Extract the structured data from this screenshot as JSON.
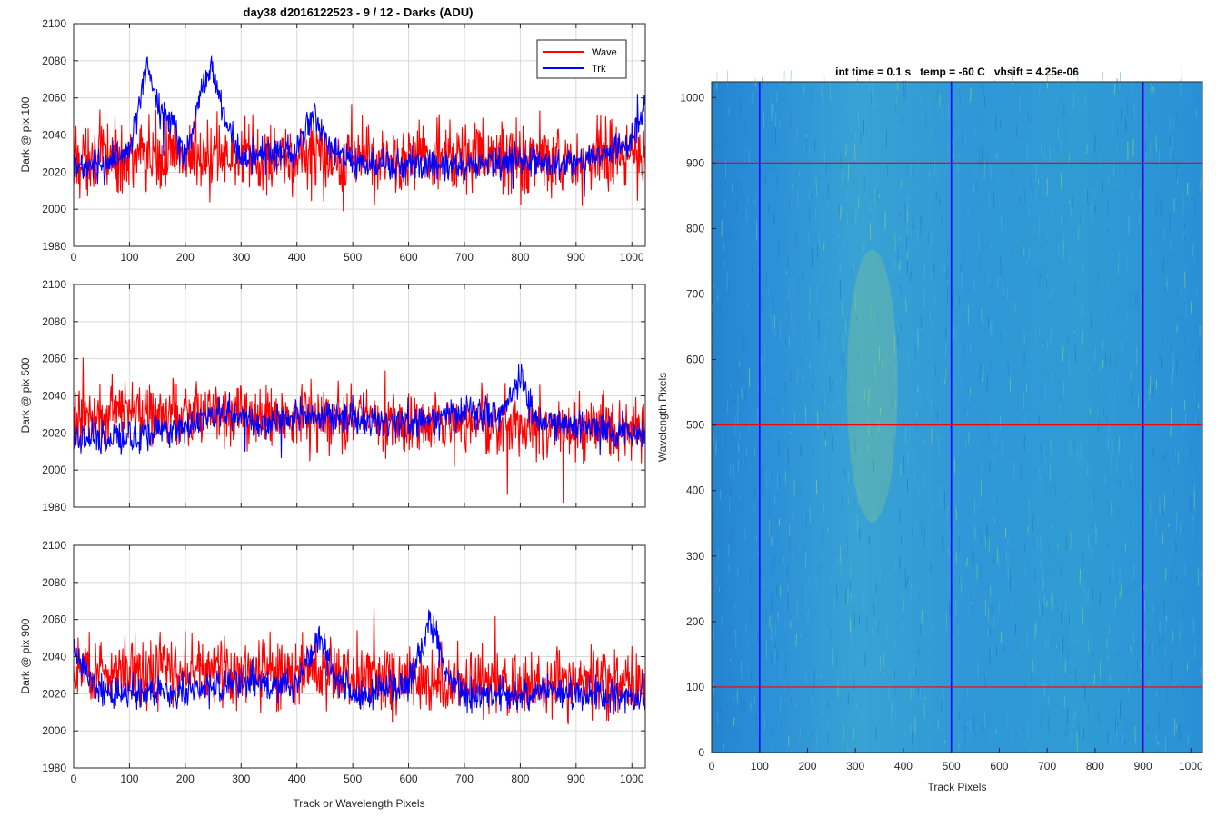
{
  "figure": {
    "title": "day38 d2016122523 - 9 / 12 - Darks (ADU)"
  },
  "colors": {
    "wave": "#ff0000",
    "trk": "#0000ff",
    "heatmap_base": "#2a8dd6",
    "heatmap_highlight": "#9ad27a",
    "grid": "#d9d9d9",
    "axis": "#262626"
  },
  "chart_data": [
    {
      "type": "line",
      "ylabel": "Dark @ pix 100",
      "xlabel": "",
      "xlim": [
        0,
        1024
      ],
      "ylim": [
        1980,
        2100
      ],
      "xticks": [
        0,
        100,
        200,
        300,
        400,
        500,
        600,
        700,
        800,
        900,
        1000
      ],
      "yticks": [
        1980,
        2000,
        2020,
        2040,
        2060,
        2080,
        2100
      ],
      "show_xticklabels": true,
      "grid": true,
      "legend": {
        "position": "top-right",
        "entries": [
          "Wave",
          "Trk"
        ]
      },
      "series": [
        {
          "name": "Wave",
          "color": "#ff0000",
          "x": [
            0,
            100,
            200,
            300,
            400,
            500,
            600,
            700,
            800,
            900,
            1000,
            1024
          ],
          "values": [
            2028,
            2028,
            2028,
            2027,
            2028,
            2029,
            2028,
            2028,
            2028,
            2027,
            2027,
            2022
          ],
          "noise": 14
        },
        {
          "name": "Trk",
          "color": "#0000ff",
          "x": [
            0,
            50,
            100,
            120,
            130,
            150,
            180,
            200,
            230,
            245,
            260,
            280,
            300,
            400,
            430,
            460,
            500,
            600,
            700,
            800,
            900,
            950,
            1000,
            1024
          ],
          "values": [
            2026,
            2022,
            2032,
            2062,
            2078,
            2055,
            2045,
            2027,
            2065,
            2076,
            2062,
            2040,
            2027,
            2032,
            2052,
            2033,
            2025,
            2024,
            2024,
            2026,
            2024,
            2030,
            2038,
            2055
          ],
          "noise": 6
        }
      ]
    },
    {
      "type": "line",
      "ylabel": "Dark @ pix 500",
      "xlabel": "",
      "xlim": [
        0,
        1024
      ],
      "ylim": [
        1980,
        2100
      ],
      "xticks": [
        0,
        100,
        200,
        300,
        400,
        500,
        600,
        700,
        800,
        900,
        1000
      ],
      "yticks": [
        1980,
        2000,
        2020,
        2040,
        2060,
        2080,
        2100
      ],
      "show_xticklabels": false,
      "grid": true,
      "series": [
        {
          "name": "Wave",
          "color": "#ff0000",
          "x": [
            0,
            100,
            200,
            300,
            400,
            500,
            600,
            700,
            800,
            900,
            1000,
            1024
          ],
          "values": [
            2028,
            2032,
            2030,
            2029,
            2029,
            2027,
            2025,
            2026,
            2026,
            2024,
            2022,
            2022
          ],
          "noise": 12
        },
        {
          "name": "Trk",
          "color": "#0000ff",
          "x": [
            0,
            100,
            200,
            280,
            330,
            400,
            500,
            600,
            700,
            760,
            800,
            830,
            900,
            1000,
            1024
          ],
          "values": [
            2018,
            2017,
            2024,
            2032,
            2025,
            2030,
            2028,
            2024,
            2032,
            2030,
            2050,
            2026,
            2025,
            2020,
            2020
          ],
          "noise": 6
        }
      ]
    },
    {
      "type": "line",
      "ylabel": "Dark @ pix 900",
      "xlabel": "Track or Wavelength Pixels",
      "xlim": [
        0,
        1024
      ],
      "ylim": [
        1980,
        2100
      ],
      "xticks": [
        0,
        100,
        200,
        300,
        400,
        500,
        600,
        700,
        800,
        900,
        1000
      ],
      "yticks": [
        1980,
        2000,
        2020,
        2040,
        2060,
        2080,
        2100
      ],
      "show_xticklabels": true,
      "grid": true,
      "series": [
        {
          "name": "Wave",
          "color": "#ff0000",
          "x": [
            0,
            100,
            200,
            300,
            400,
            500,
            600,
            700,
            800,
            900,
            1000,
            1024
          ],
          "values": [
            2034,
            2034,
            2033,
            2032,
            2032,
            2030,
            2028,
            2027,
            2027,
            2026,
            2024,
            2022
          ],
          "noise": 13
        },
        {
          "name": "Trk",
          "color": "#0000ff",
          "x": [
            0,
            20,
            60,
            100,
            200,
            300,
            400,
            440,
            470,
            500,
            600,
            640,
            670,
            700,
            800,
            900,
            1000,
            1024
          ],
          "values": [
            2045,
            2030,
            2018,
            2020,
            2022,
            2026,
            2025,
            2050,
            2028,
            2020,
            2024,
            2060,
            2030,
            2020,
            2020,
            2020,
            2018,
            2018
          ],
          "noise": 6
        }
      ]
    },
    {
      "type": "heatmap",
      "title": "int time = 0.1 s   temp = -60 C   vhsift = 4.25e-06",
      "xlabel": "Track Pixels",
      "ylabel": "Wavelength Pixels",
      "xlim": [
        0,
        1024
      ],
      "ylim": [
        0,
        1024
      ],
      "xticks": [
        0,
        100,
        200,
        300,
        400,
        500,
        600,
        700,
        800,
        900,
        1000
      ],
      "yticks": [
        0,
        100,
        200,
        300,
        400,
        500,
        600,
        700,
        800,
        900,
        1000
      ],
      "vertical_markers": {
        "x": [
          100,
          500,
          900
        ],
        "color": "#0000ff"
      },
      "horizontal_markers": {
        "y": [
          100,
          500,
          900
        ],
        "color": "#ff0000"
      }
    }
  ]
}
